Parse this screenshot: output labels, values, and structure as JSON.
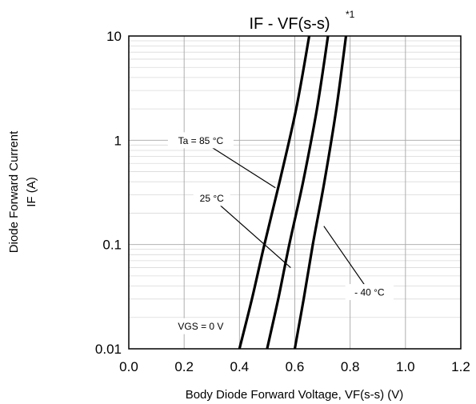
{
  "chart_data": {
    "type": "line",
    "title": "IF - VF(s-s)",
    "title_footnote": "*1",
    "xlabel": "Body Diode Forward Voltage, VF(s-s)  (V)",
    "ylabel_line1": "Diode Forward Current",
    "ylabel_line2": "IF (A)",
    "xlim": [
      0.0,
      1.2
    ],
    "ylim": [
      0.01,
      10
    ],
    "y_scale": "log",
    "grid": true,
    "x_ticks": [
      "0.0",
      "0.2",
      "0.4",
      "0.6",
      "0.8",
      "1.0",
      "1.2"
    ],
    "y_ticks": [
      "0.01",
      "0.1",
      "1",
      "10"
    ],
    "series": [
      {
        "name": "Ta = 85 °C",
        "x": [
          0.4,
          0.445,
          0.49,
          0.545,
          0.605,
          0.652
        ],
        "y": [
          0.01,
          0.03,
          0.1,
          0.4,
          2.0,
          10
        ]
      },
      {
        "name": "25 °C",
        "x": [
          0.5,
          0.54,
          0.58,
          0.63,
          0.68,
          0.72
        ],
        "y": [
          0.01,
          0.03,
          0.1,
          0.4,
          2.0,
          10
        ]
      },
      {
        "name": "- 40 °C",
        "x": [
          0.6,
          0.632,
          0.665,
          0.707,
          0.75,
          0.785
        ],
        "y": [
          0.01,
          0.03,
          0.1,
          0.4,
          2.0,
          10
        ]
      }
    ],
    "annotations": [
      {
        "text": "Ta = 85 °C",
        "x": 0.26,
        "y": 1.0,
        "target_x": 0.53,
        "target_y": 0.35
      },
      {
        "text": "25 °C",
        "x": 0.3,
        "y": 0.28,
        "target_x": 0.585,
        "target_y": 0.06
      },
      {
        "text": "- 40 °C",
        "x": 0.87,
        "y": 0.035,
        "target_x": 0.705,
        "target_y": 0.15
      },
      {
        "text": "VGS = 0 V",
        "x": 0.26,
        "y": 0.0165
      }
    ]
  }
}
